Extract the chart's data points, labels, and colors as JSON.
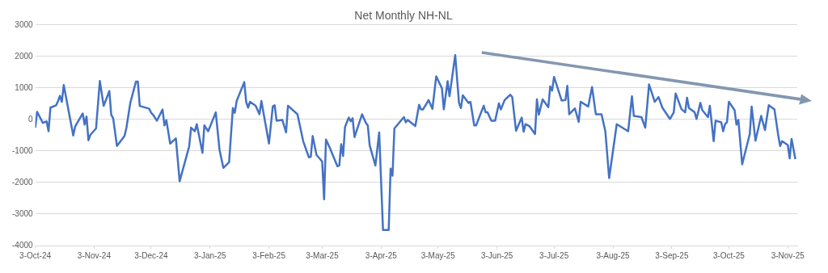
{
  "chart_data": {
    "type": "line",
    "title": "Net Monthly NH-NL",
    "x": [
      "2024-10-03",
      "2024-10-04",
      "2024-10-07",
      "2024-10-09",
      "2024-10-10",
      "2024-10-11",
      "2024-10-14",
      "2024-10-15",
      "2024-10-16",
      "2024-10-17",
      "2024-10-18",
      "2024-10-23",
      "2024-10-24",
      "2024-10-28",
      "2024-10-29",
      "2024-10-30",
      "2024-10-31",
      "2024-11-01",
      "2024-11-04",
      "2024-11-06",
      "2024-11-08",
      "2024-11-11",
      "2024-11-12",
      "2024-11-13",
      "2024-11-15",
      "2024-11-19",
      "2024-11-20",
      "2024-11-22",
      "2024-11-25",
      "2024-11-26",
      "2024-11-27",
      "2024-12-02",
      "2024-12-03",
      "2024-12-04",
      "2024-12-06",
      "2024-12-09",
      "2024-12-10",
      "2024-12-11",
      "2024-12-13",
      "2024-12-16",
      "2024-12-18",
      "2024-12-23",
      "2024-12-24",
      "2024-12-26",
      "2024-12-27",
      "2024-12-30",
      "2024-12-31",
      "2025-01-02",
      "2025-01-06",
      "2025-01-08",
      "2025-01-10",
      "2025-01-13",
      "2025-01-15",
      "2025-01-16",
      "2025-01-17",
      "2025-01-21",
      "2025-01-22",
      "2025-01-23",
      "2025-01-24",
      "2025-01-27",
      "2025-01-29",
      "2025-01-30",
      "2025-02-03",
      "2025-02-05",
      "2025-02-06",
      "2025-02-07",
      "2025-02-10",
      "2025-02-12",
      "2025-02-13",
      "2025-02-18",
      "2025-02-21",
      "2025-02-24",
      "2025-02-25",
      "2025-02-26",
      "2025-02-28",
      "2025-03-03",
      "2025-03-04",
      "2025-03-05",
      "2025-03-07",
      "2025-03-11",
      "2025-03-12",
      "2025-03-13",
      "2025-03-14",
      "2025-03-15",
      "2025-03-17",
      "2025-03-18",
      "2025-03-19",
      "2025-03-20",
      "2025-03-24",
      "2025-03-26",
      "2025-03-27",
      "2025-03-28",
      "2025-03-31",
      "2025-04-02",
      "2025-04-04",
      "2025-04-07",
      "2025-04-08",
      "2025-04-09",
      "2025-04-10",
      "2025-04-15",
      "2025-04-16",
      "2025-04-17",
      "2025-04-21",
      "2025-04-23",
      "2025-04-24",
      "2025-04-25",
      "2025-04-27",
      "2025-04-28",
      "2025-04-30",
      "2025-05-02",
      "2025-05-05",
      "2025-05-06",
      "2025-05-08",
      "2025-05-09",
      "2025-05-12",
      "2025-05-14",
      "2025-05-15",
      "2025-05-16",
      "2025-05-19",
      "2025-05-20",
      "2025-05-22",
      "2025-05-23",
      "2025-05-27",
      "2025-05-28",
      "2025-05-29",
      "2025-05-31",
      "2025-06-02",
      "2025-06-04",
      "2025-06-05",
      "2025-06-07",
      "2025-06-10",
      "2025-06-11",
      "2025-06-13",
      "2025-06-16",
      "2025-06-17",
      "2025-06-18",
      "2025-06-20",
      "2025-06-23",
      "2025-06-24",
      "2025-06-25",
      "2025-06-27",
      "2025-06-30",
      "2025-07-01",
      "2025-07-02",
      "2025-07-03",
      "2025-07-07",
      "2025-07-09",
      "2025-07-10",
      "2025-07-11",
      "2025-07-14",
      "2025-07-16",
      "2025-07-17",
      "2025-07-21",
      "2025-07-23",
      "2025-07-25",
      "2025-07-28",
      "2025-07-30",
      "2025-08-01",
      "2025-08-05",
      "2025-08-11",
      "2025-08-13",
      "2025-08-14",
      "2025-08-18",
      "2025-08-20",
      "2025-08-22",
      "2025-08-25",
      "2025-08-27",
      "2025-08-29",
      "2025-09-02",
      "2025-09-04",
      "2025-09-05",
      "2025-09-08",
      "2025-09-10",
      "2025-09-11",
      "2025-09-12",
      "2025-09-15",
      "2025-09-16",
      "2025-09-18",
      "2025-09-19",
      "2025-09-22",
      "2025-09-23",
      "2025-09-25",
      "2025-09-26",
      "2025-09-29",
      "2025-09-30",
      "2025-10-01",
      "2025-10-02",
      "2025-10-03",
      "2025-10-06",
      "2025-10-07",
      "2025-10-08",
      "2025-10-10",
      "2025-10-14",
      "2025-10-15",
      "2025-10-17",
      "2025-10-20",
      "2025-10-22",
      "2025-10-24",
      "2025-10-27",
      "2025-10-29",
      "2025-10-30",
      "2025-10-31",
      "2025-11-03",
      "2025-11-04",
      "2025-11-05",
      "2025-11-07"
    ],
    "series": [
      {
        "color": "#4472c4",
        "values": [
          -260,
          240,
          -110,
          -60,
          -375,
          375,
          450,
          580,
          750,
          560,
          1090,
          -510,
          -225,
          190,
          -165,
          90,
          -660,
          -490,
          -285,
          1220,
          430,
          900,
          150,
          40,
          -840,
          -520,
          -260,
          520,
          1200,
          1200,
          430,
          340,
          210,
          150,
          -40,
          315,
          -190,
          -20,
          -765,
          -600,
          -1960,
          -860,
          -260,
          -375,
          -150,
          -1060,
          -190,
          -375,
          225,
          -975,
          -1535,
          -1360,
          360,
          210,
          585,
          1185,
          560,
          375,
          560,
          435,
          165,
          585,
          -765,
          410,
          450,
          -40,
          -15,
          -410,
          435,
          165,
          -690,
          -1200,
          -1185,
          -525,
          -1125,
          -1335,
          -2530,
          -640,
          -900,
          -1485,
          -1460,
          -785,
          -1160,
          -240,
          60,
          -60,
          40,
          -560,
          165,
          -110,
          -190,
          -825,
          -1460,
          -410,
          -3505,
          -3505,
          -1560,
          -1785,
          -285,
          75,
          -90,
          -15,
          -210,
          465,
          315,
          315,
          510,
          615,
          335,
          1365,
          990,
          320,
          1215,
          735,
          2040,
          525,
          360,
          765,
          525,
          560,
          -190,
          -190,
          435,
          225,
          225,
          -40,
          -40,
          510,
          315,
          615,
          785,
          710,
          -360,
          60,
          -390,
          -150,
          -210,
          -465,
          635,
          150,
          635,
          390,
          1050,
          915,
          1350,
          600,
          615,
          1065,
          165,
          350,
          -75,
          560,
          410,
          1030,
          165,
          165,
          -375,
          -1860,
          -150,
          -375,
          735,
          110,
          75,
          -260,
          1110,
          560,
          710,
          375,
          15,
          225,
          825,
          335,
          225,
          690,
          360,
          225,
          15,
          525,
          300,
          75,
          435,
          -690,
          -40,
          -90,
          -375,
          -150,
          -90,
          560,
          300,
          -165,
          -15,
          -1425,
          -465,
          410,
          -675,
          110,
          -335,
          450,
          315,
          -510,
          -840,
          -690,
          -810,
          -1235,
          -615,
          -1260
        ]
      }
    ],
    "xlim": [
      "2024-10-03",
      "2025-11-08"
    ],
    "xticks": [
      {
        "value": "2024-10-03",
        "label": "3-Oct-24"
      },
      {
        "value": "2024-11-03",
        "label": "3-Nov-24"
      },
      {
        "value": "2024-12-03",
        "label": "3-Dec-24"
      },
      {
        "value": "2025-01-03",
        "label": "3-Jan-25"
      },
      {
        "value": "2025-02-03",
        "label": "3-Feb-25"
      },
      {
        "value": "2025-03-03",
        "label": "3-Mar-25"
      },
      {
        "value": "2025-04-03",
        "label": "3-Apr-25"
      },
      {
        "value": "2025-05-03",
        "label": "3-May-25"
      },
      {
        "value": "2025-06-03",
        "label": "3-Jun-25"
      },
      {
        "value": "2025-07-03",
        "label": "3-Jul-25"
      },
      {
        "value": "2025-08-03",
        "label": "3-Aug-25"
      },
      {
        "value": "2025-09-03",
        "label": "3-Sep-25"
      },
      {
        "value": "2025-10-03",
        "label": "3-Oct-25"
      },
      {
        "value": "2025-11-03",
        "label": "3-Nov-25"
      }
    ],
    "ylim": [
      -4000,
      3000
    ],
    "yticks": [
      -4000,
      -3000,
      -2000,
      -1000,
      0,
      1000,
      2000,
      3000
    ],
    "grid": "y",
    "marker": "none",
    "line_style": "solid"
  }
}
